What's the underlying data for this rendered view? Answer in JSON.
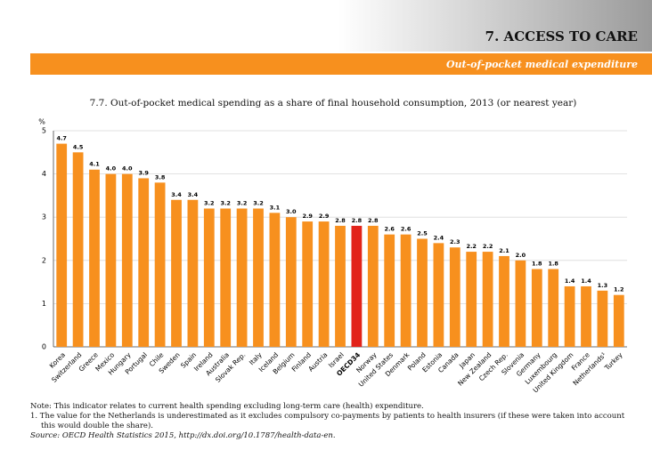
{
  "header": {
    "section": "7. ACCESS TO CARE",
    "subtitle": "Out-of-pocket medical expenditure"
  },
  "chart_data": {
    "type": "bar",
    "title": "7.7. Out-of-pocket medical spending as a share of final household consumption, 2013 (or nearest year)",
    "y_label": "%",
    "categories": [
      "Korea",
      "Switzerland",
      "Greece",
      "Mexico",
      "Hungary",
      "Portugal",
      "Chile",
      "Sweden",
      "Spain",
      "Ireland",
      "Australia",
      "Slovak Rep.",
      "Italy",
      "Iceland",
      "Belgium",
      "Finland",
      "Austria",
      "Israel",
      "OECD34",
      "Norway",
      "United States",
      "Denmark",
      "Poland",
      "Estonia",
      "Canada",
      "Japan",
      "New Zealand",
      "Czech Rep.",
      "Slovenia",
      "Germany",
      "Luxembourg",
      "United Kingdom",
      "France",
      "Netherlands¹",
      "Turkey"
    ],
    "values": [
      4.7,
      4.5,
      4.1,
      4.0,
      4.0,
      3.9,
      3.8,
      3.4,
      3.4,
      3.2,
      3.2,
      3.2,
      3.2,
      3.1,
      3.0,
      2.9,
      2.9,
      2.8,
      2.8,
      2.8,
      2.6,
      2.6,
      2.5,
      2.4,
      2.3,
      2.2,
      2.2,
      2.1,
      2.0,
      1.8,
      1.8,
      1.4,
      1.4,
      1.3,
      1.2
    ],
    "value_labels": [
      "4.7",
      "4.5",
      "4.1",
      "4.0",
      "4.0",
      "3.9",
      "3.8",
      "3.4",
      "3.4",
      "3.2",
      "3.2",
      "3.2",
      "3.2",
      "3.1",
      "3.0",
      "2.9",
      "2.9",
      "2.8",
      "2.8",
      "2.8",
      "2.6",
      "2.6",
      "2.5",
      "2.4",
      "2.3",
      "2.2",
      "2.2",
      "2.1",
      "2.0",
      "1.8",
      "1.8",
      "1.4",
      "1.4",
      "1.3",
      "1.2"
    ],
    "color": "#f7901e",
    "colors": [
      "#f7901e",
      "#f7901e",
      "#f7901e",
      "#f7901e",
      "#f7901e",
      "#f7901e",
      "#f7901e",
      "#f7901e",
      "#f7901e",
      "#f7901e",
      "#f7901e",
      "#f7901e",
      "#f7901e",
      "#f7901e",
      "#f7901e",
      "#f7901e",
      "#f7901e",
      "#f7901e",
      "#e2231a",
      "#f7901e",
      "#f7901e",
      "#f7901e",
      "#f7901e",
      "#f7901e",
      "#f7901e",
      "#f7901e",
      "#f7901e",
      "#f7901e",
      "#f7901e",
      "#f7901e",
      "#f7901e",
      "#f7901e",
      "#f7901e",
      "#f7901e",
      "#f7901e"
    ],
    "ylim": [
      0,
      5
    ],
    "yticks": [
      0,
      1,
      2,
      3,
      4,
      5
    ],
    "grid": true
  },
  "notes": {
    "note": "Note: This indicator relates to current health spending excluding long-term care (health) expenditure.",
    "footnote": "1.  The value for the Netherlands is underestimated as it excludes compulsory co-payments by patients to health insurers (if these were taken into account this would double the share).",
    "source": "Source: OECD Health Statistics 2015, http://dx.doi.org/10.1787/health-data-en."
  }
}
